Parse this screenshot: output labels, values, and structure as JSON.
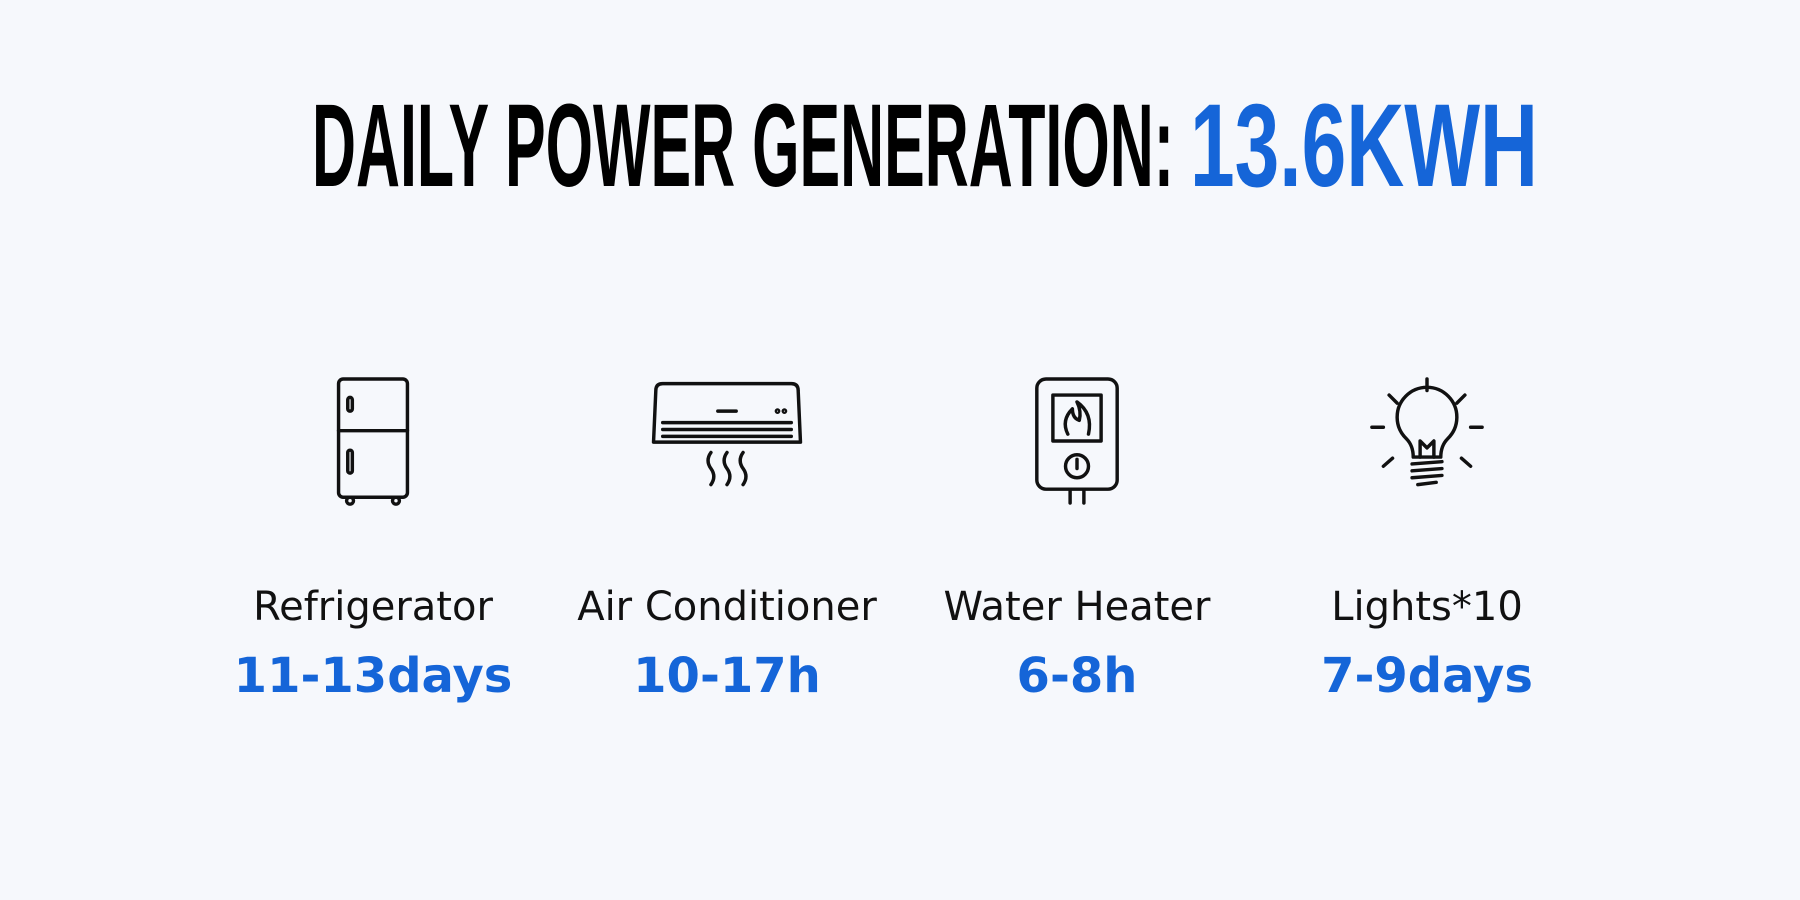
{
  "header": {
    "title": "DAILY POWER GENERATION:",
    "value": "13.6KWH"
  },
  "items": [
    {
      "name": "Refrigerator",
      "runtime": "11-13days"
    },
    {
      "name": "Air Conditioner",
      "runtime": "10-17h"
    },
    {
      "name": "Water Heater",
      "runtime": "6-8h"
    },
    {
      "name": "Lights*10",
      "runtime": "7-9days"
    }
  ]
}
